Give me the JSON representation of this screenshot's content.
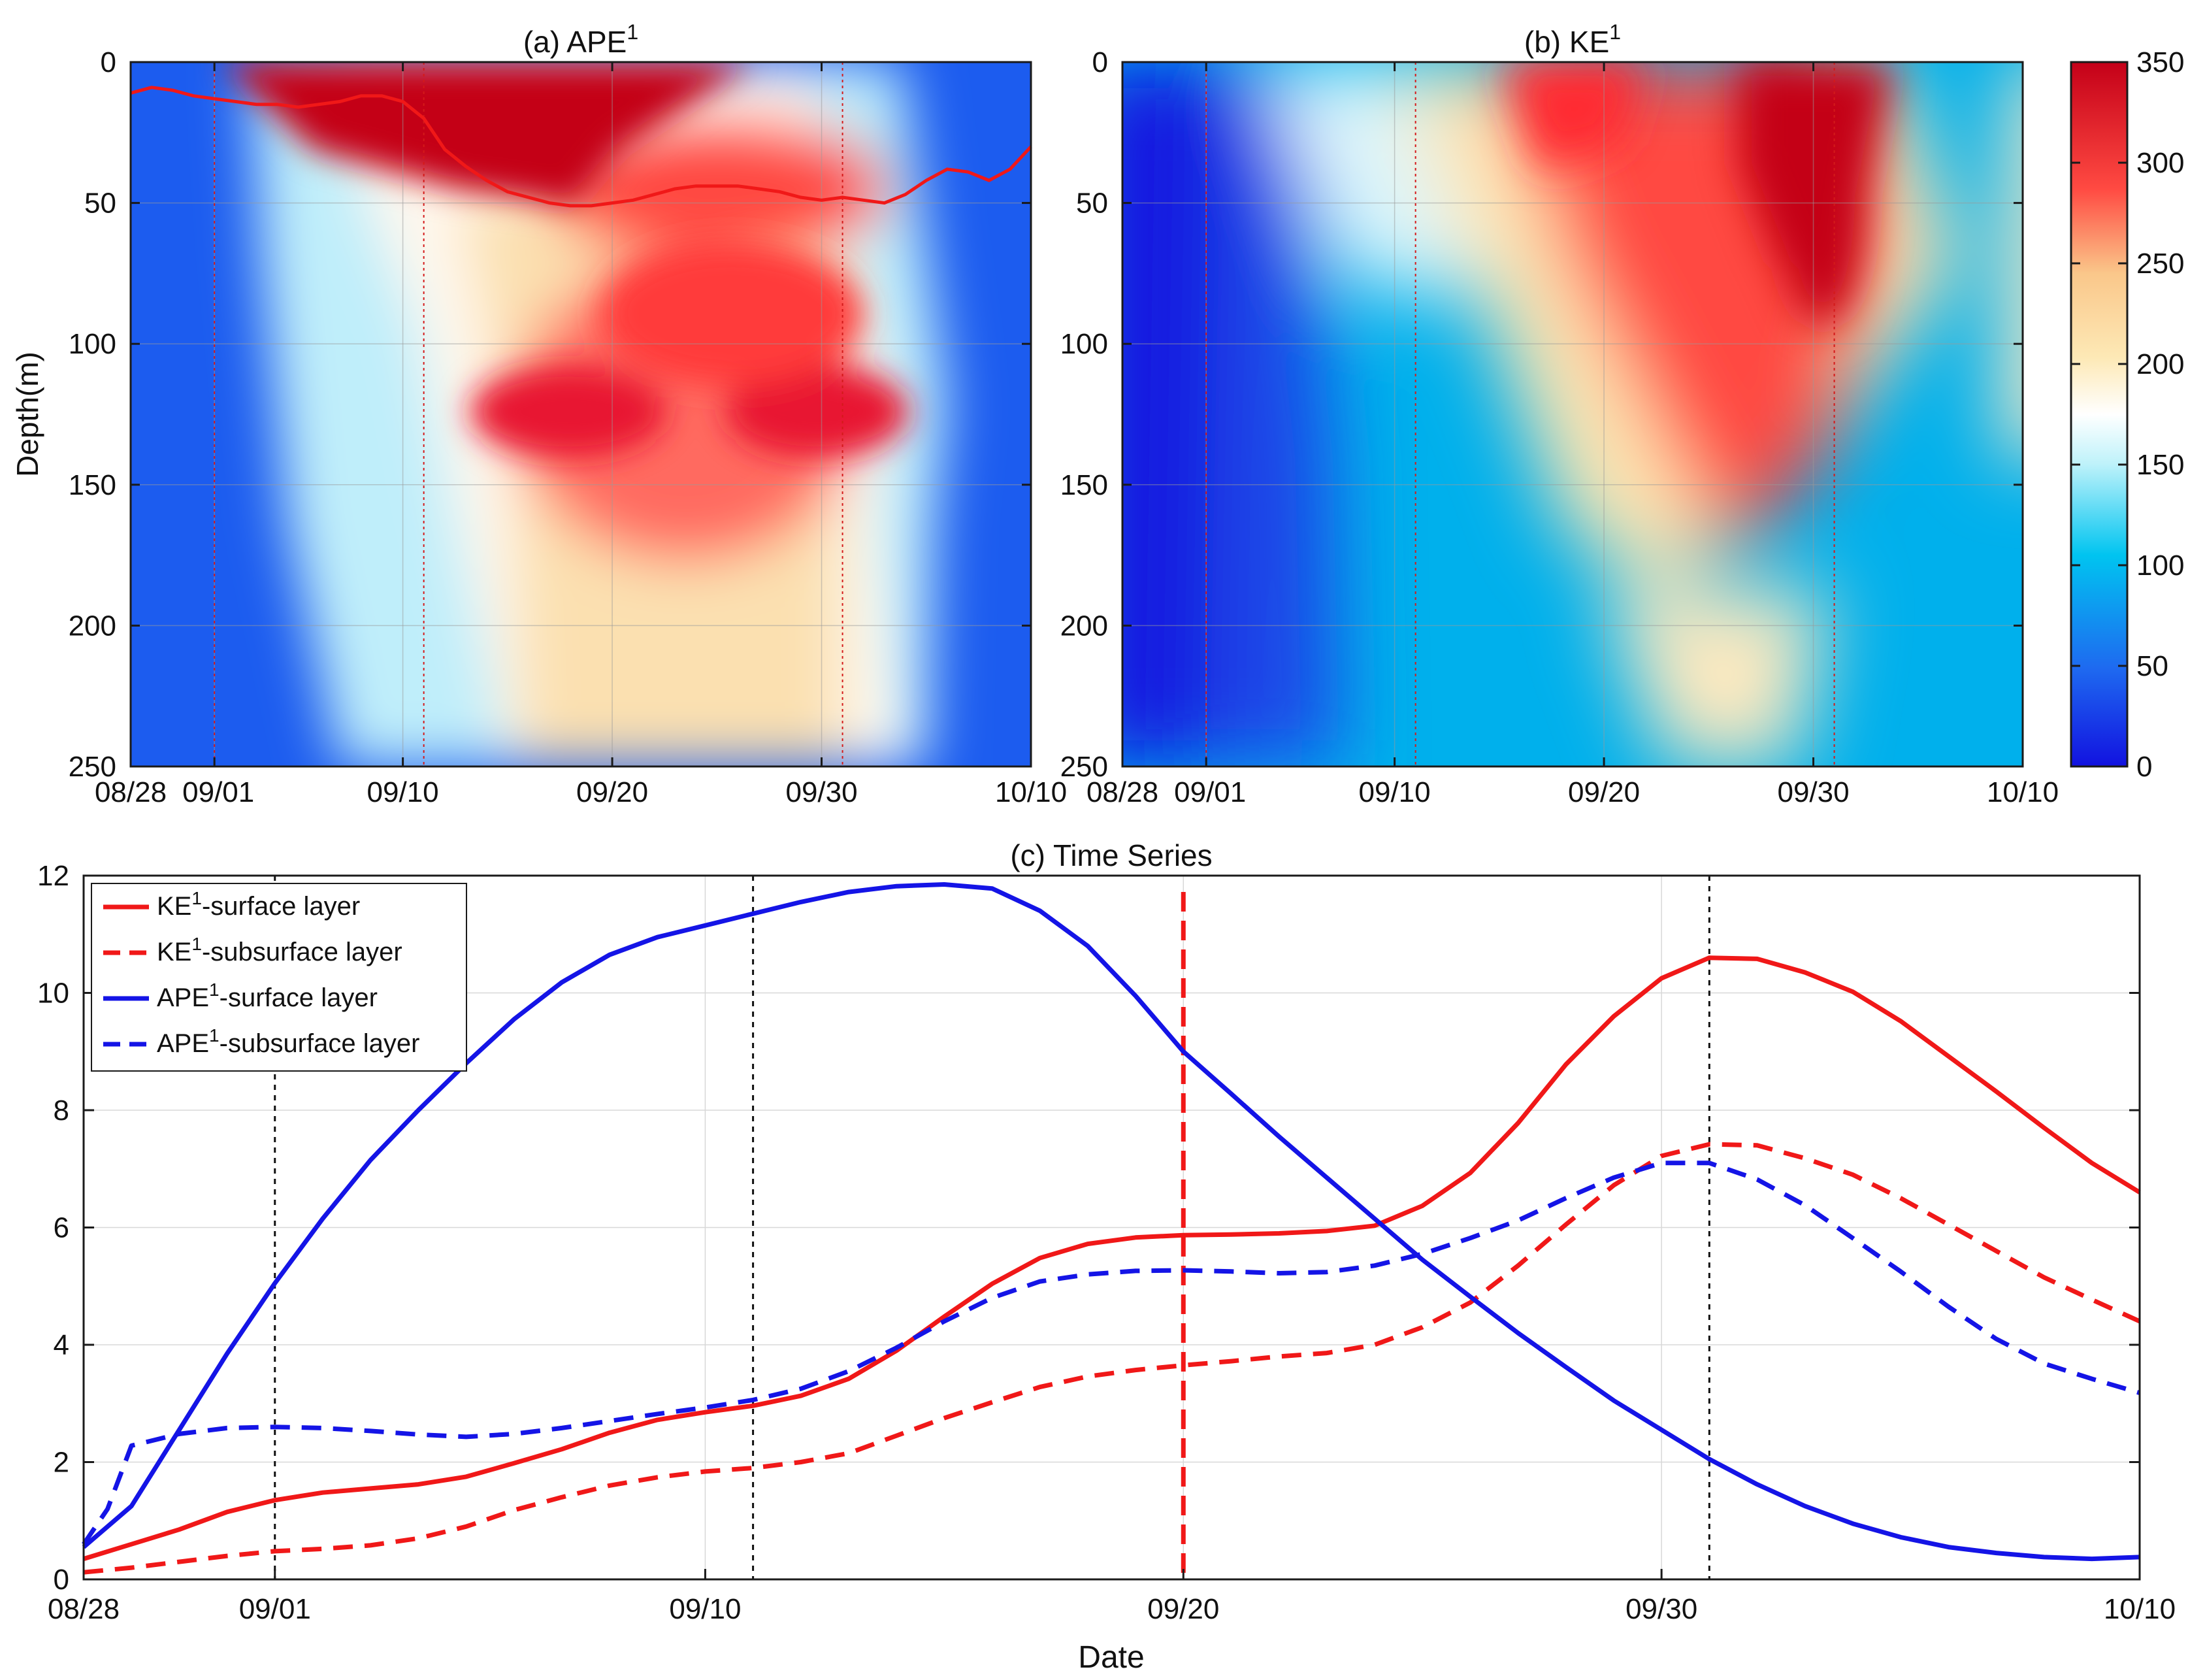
{
  "chart_data": [
    {
      "id": "a",
      "type": "heatmap",
      "title": "(a) APE",
      "title_sup": "1",
      "ylabel": "Depth(m)",
      "xlabel": "",
      "xlim_days": [
        0,
        43
      ],
      "ylim": [
        0,
        250
      ],
      "y_reversed": true,
      "x_ticks": [
        {
          "day": 0,
          "label": "08/28"
        },
        {
          "day": 4,
          "label": "09/01"
        },
        {
          "day": 13,
          "label": "09/10"
        },
        {
          "day": 23,
          "label": "09/20"
        },
        {
          "day": 33,
          "label": "09/30"
        },
        {
          "day": 43,
          "label": "10/10"
        }
      ],
      "y_ticks": [
        0,
        50,
        100,
        150,
        200,
        250
      ],
      "event_lines_days": [
        4,
        14,
        34
      ],
      "mixed_layer_depth": [
        [
          0,
          11
        ],
        [
          1,
          9
        ],
        [
          2,
          10
        ],
        [
          3,
          12
        ],
        [
          4,
          13
        ],
        [
          5,
          14
        ],
        [
          6,
          15
        ],
        [
          7,
          15
        ],
        [
          8,
          16
        ],
        [
          9,
          15
        ],
        [
          10,
          14
        ],
        [
          11,
          12
        ],
        [
          12,
          12
        ],
        [
          13,
          14
        ],
        [
          14,
          20
        ],
        [
          15,
          31
        ],
        [
          16,
          37
        ],
        [
          17,
          42
        ],
        [
          18,
          46
        ],
        [
          19,
          48
        ],
        [
          20,
          50
        ],
        [
          21,
          51
        ],
        [
          22,
          51
        ],
        [
          23,
          50
        ],
        [
          24,
          49
        ],
        [
          25,
          47
        ],
        [
          26,
          45
        ],
        [
          27,
          44
        ],
        [
          28,
          44
        ],
        [
          29,
          44
        ],
        [
          30,
          45
        ],
        [
          31,
          46
        ],
        [
          32,
          48
        ],
        [
          33,
          49
        ],
        [
          34,
          48
        ],
        [
          35,
          49
        ],
        [
          36,
          50
        ],
        [
          37,
          47
        ],
        [
          38,
          42
        ],
        [
          39,
          38
        ],
        [
          40,
          39
        ],
        [
          41,
          42
        ],
        [
          42,
          38
        ],
        [
          43,
          30
        ]
      ]
    },
    {
      "id": "b",
      "type": "heatmap",
      "title": "(b) KE",
      "title_sup": "1",
      "xlim_days": [
        0,
        43
      ],
      "ylim": [
        0,
        250
      ],
      "y_reversed": true,
      "x_ticks": [
        {
          "day": 0,
          "label": "08/28"
        },
        {
          "day": 4,
          "label": "09/01"
        },
        {
          "day": 13,
          "label": "09/10"
        },
        {
          "day": 23,
          "label": "09/20"
        },
        {
          "day": 33,
          "label": "09/30"
        },
        {
          "day": 43,
          "label": "10/10"
        }
      ],
      "y_ticks": [
        0,
        50,
        100,
        150,
        200,
        250
      ],
      "event_lines_days": [
        4,
        14,
        34
      ],
      "colorbar": {
        "min": 0,
        "max": 350,
        "ticks": [
          0,
          50,
          100,
          150,
          200,
          250,
          300,
          350
        ],
        "colormap": "blue-cyan-white-yellow-red"
      }
    },
    {
      "id": "c",
      "type": "line",
      "title": "(c) Time Series",
      "xlabel": "Date",
      "ylabel": "",
      "xlim_days": [
        0,
        43
      ],
      "ylim": [
        0,
        12
      ],
      "x_ticks": [
        {
          "day": 0,
          "label": "08/28"
        },
        {
          "day": 4,
          "label": "09/01"
        },
        {
          "day": 13,
          "label": "09/10"
        },
        {
          "day": 23,
          "label": "09/20"
        },
        {
          "day": 33,
          "label": "09/30"
        },
        {
          "day": 43,
          "label": "10/10"
        }
      ],
      "y_ticks": [
        0,
        2,
        4,
        6,
        8,
        10,
        12
      ],
      "event_lines_days": [
        4,
        14,
        34
      ],
      "highlight_line_day": 23,
      "legend_position": "top-left",
      "series": [
        {
          "name": "KE",
          "sup": "1",
          "suffix": "-surface layer",
          "color": "#f01818",
          "dash": "solid",
          "points": [
            [
              0,
              0.35
            ],
            [
              1,
              0.6
            ],
            [
              2,
              0.85
            ],
            [
              3,
              1.15
            ],
            [
              4,
              1.35
            ],
            [
              5,
              1.48
            ],
            [
              6,
              1.55
            ],
            [
              7,
              1.62
            ],
            [
              8,
              1.75
            ],
            [
              9,
              1.98
            ],
            [
              10,
              2.22
            ],
            [
              11,
              2.5
            ],
            [
              12,
              2.72
            ],
            [
              13,
              2.85
            ],
            [
              14,
              2.96
            ],
            [
              15,
              3.13
            ],
            [
              16,
              3.42
            ],
            [
              17,
              3.9
            ],
            [
              18,
              4.48
            ],
            [
              19,
              5.04
            ],
            [
              20,
              5.48
            ],
            [
              21,
              5.72
            ],
            [
              22,
              5.83
            ],
            [
              23,
              5.87
            ],
            [
              24,
              5.88
            ],
            [
              25,
              5.9
            ],
            [
              26,
              5.94
            ],
            [
              27,
              6.03
            ],
            [
              28,
              6.37
            ],
            [
              29,
              6.93
            ],
            [
              30,
              7.78
            ],
            [
              31,
              8.78
            ],
            [
              32,
              9.6
            ],
            [
              33,
              10.25
            ],
            [
              34,
              10.6
            ],
            [
              35,
              10.58
            ],
            [
              36,
              10.35
            ],
            [
              37,
              10.02
            ],
            [
              38,
              9.52
            ],
            [
              39,
              8.92
            ],
            [
              40,
              8.32
            ],
            [
              41,
              7.7
            ],
            [
              42,
              7.1
            ],
            [
              43,
              6.6
            ]
          ]
        },
        {
          "name": "KE",
          "sup": "1",
          "suffix": "-subsurface layer",
          "color": "#f01818",
          "dash": "dashed",
          "points": [
            [
              0,
              0.12
            ],
            [
              1,
              0.2
            ],
            [
              2,
              0.3
            ],
            [
              3,
              0.4
            ],
            [
              4,
              0.48
            ],
            [
              5,
              0.52
            ],
            [
              6,
              0.58
            ],
            [
              7,
              0.7
            ],
            [
              8,
              0.9
            ],
            [
              9,
              1.18
            ],
            [
              10,
              1.4
            ],
            [
              11,
              1.6
            ],
            [
              12,
              1.74
            ],
            [
              13,
              1.84
            ],
            [
              14,
              1.9
            ],
            [
              15,
              2.0
            ],
            [
              16,
              2.15
            ],
            [
              17,
              2.45
            ],
            [
              18,
              2.75
            ],
            [
              19,
              3.02
            ],
            [
              20,
              3.28
            ],
            [
              21,
              3.46
            ],
            [
              22,
              3.57
            ],
            [
              23,
              3.65
            ],
            [
              24,
              3.72
            ],
            [
              25,
              3.8
            ],
            [
              26,
              3.86
            ],
            [
              27,
              4.0
            ],
            [
              28,
              4.3
            ],
            [
              29,
              4.72
            ],
            [
              30,
              5.35
            ],
            [
              31,
              6.05
            ],
            [
              32,
              6.72
            ],
            [
              33,
              7.22
            ],
            [
              34,
              7.42
            ],
            [
              35,
              7.4
            ],
            [
              36,
              7.18
            ],
            [
              37,
              6.9
            ],
            [
              38,
              6.5
            ],
            [
              39,
              6.05
            ],
            [
              40,
              5.6
            ],
            [
              41,
              5.15
            ],
            [
              42,
              4.77
            ],
            [
              43,
              4.4
            ]
          ]
        },
        {
          "name": "APE",
          "sup": "1",
          "suffix": "-surface layer",
          "color": "#1414e6",
          "dash": "solid",
          "points": [
            [
              0,
              0.55
            ],
            [
              1,
              1.25
            ],
            [
              2,
              2.55
            ],
            [
              3,
              3.85
            ],
            [
              4,
              5.05
            ],
            [
              5,
              6.15
            ],
            [
              6,
              7.15
            ],
            [
              7,
              8.0
            ],
            [
              8,
              8.8
            ],
            [
              9,
              9.55
            ],
            [
              10,
              10.18
            ],
            [
              11,
              10.65
            ],
            [
              12,
              10.95
            ],
            [
              13,
              11.15
            ],
            [
              14,
              11.35
            ],
            [
              15,
              11.55
            ],
            [
              16,
              11.72
            ],
            [
              17,
              11.82
            ],
            [
              18,
              11.85
            ],
            [
              19,
              11.78
            ],
            [
              20,
              11.4
            ],
            [
              21,
              10.8
            ],
            [
              22,
              9.95
            ],
            [
              23,
              9.0
            ],
            [
              24,
              8.28
            ],
            [
              25,
              7.55
            ],
            [
              26,
              6.85
            ],
            [
              27,
              6.15
            ],
            [
              28,
              5.45
            ],
            [
              29,
              4.82
            ],
            [
              30,
              4.2
            ],
            [
              31,
              3.62
            ],
            [
              32,
              3.05
            ],
            [
              33,
              2.55
            ],
            [
              34,
              2.05
            ],
            [
              35,
              1.62
            ],
            [
              36,
              1.25
            ],
            [
              37,
              0.95
            ],
            [
              38,
              0.72
            ],
            [
              39,
              0.55
            ],
            [
              40,
              0.45
            ],
            [
              41,
              0.38
            ],
            [
              42,
              0.35
            ],
            [
              43,
              0.38
            ]
          ]
        },
        {
          "name": "APE",
          "sup": "1",
          "suffix": "-subsurface layer",
          "color": "#1414e6",
          "dash": "dashed",
          "points": [
            [
              0,
              0.6
            ],
            [
              0.5,
              1.2
            ],
            [
              1,
              2.28
            ],
            [
              2,
              2.48
            ],
            [
              3,
              2.58
            ],
            [
              4,
              2.6
            ],
            [
              5,
              2.58
            ],
            [
              6,
              2.53
            ],
            [
              7,
              2.47
            ],
            [
              8,
              2.43
            ],
            [
              9,
              2.48
            ],
            [
              10,
              2.58
            ],
            [
              11,
              2.7
            ],
            [
              12,
              2.82
            ],
            [
              13,
              2.93
            ],
            [
              14,
              3.06
            ],
            [
              15,
              3.25
            ],
            [
              16,
              3.55
            ],
            [
              17,
              3.95
            ],
            [
              18,
              4.4
            ],
            [
              19,
              4.8
            ],
            [
              20,
              5.08
            ],
            [
              21,
              5.2
            ],
            [
              22,
              5.26
            ],
            [
              23,
              5.27
            ],
            [
              24,
              5.25
            ],
            [
              25,
              5.22
            ],
            [
              26,
              5.24
            ],
            [
              27,
              5.35
            ],
            [
              28,
              5.55
            ],
            [
              29,
              5.82
            ],
            [
              30,
              6.12
            ],
            [
              31,
              6.5
            ],
            [
              32,
              6.85
            ],
            [
              33,
              7.1
            ],
            [
              34,
              7.1
            ],
            [
              35,
              6.82
            ],
            [
              36,
              6.38
            ],
            [
              37,
              5.82
            ],
            [
              38,
              5.25
            ],
            [
              39,
              4.65
            ],
            [
              40,
              4.1
            ],
            [
              41,
              3.68
            ],
            [
              42,
              3.42
            ],
            [
              43,
              3.18
            ]
          ]
        }
      ]
    }
  ]
}
